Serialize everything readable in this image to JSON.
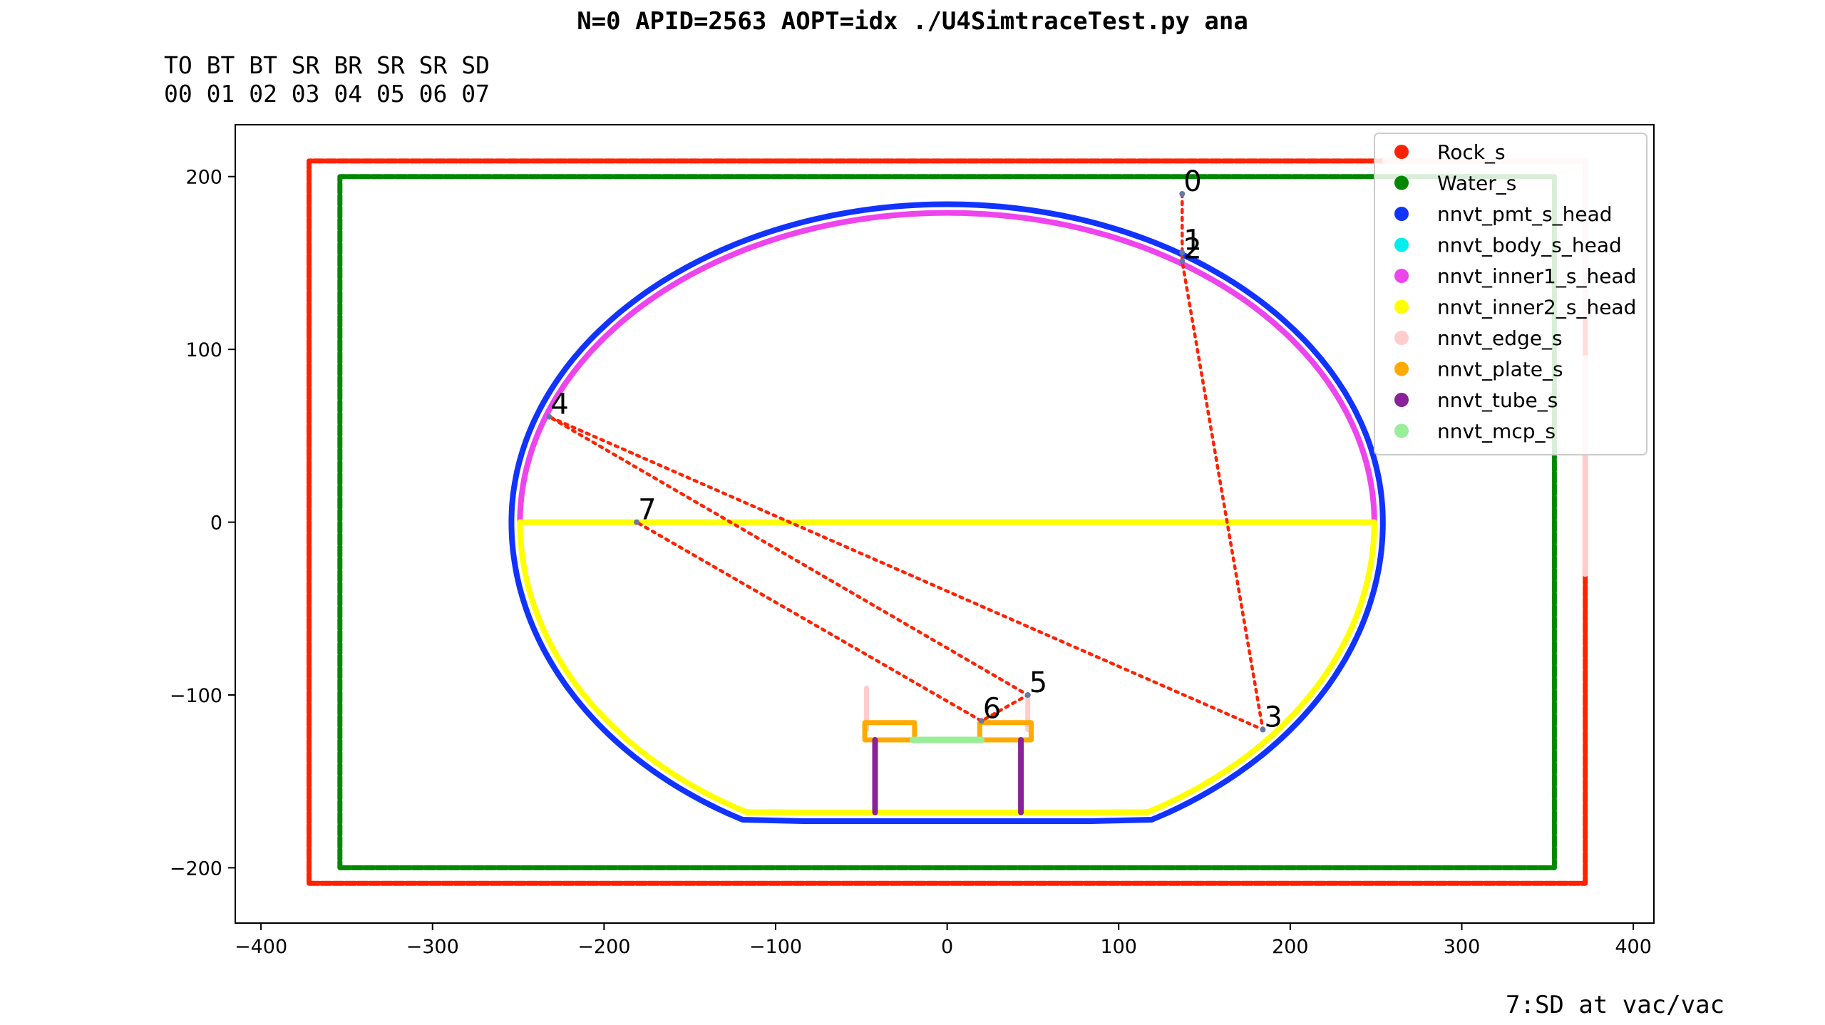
{
  "header": {
    "title": "N=0 APID=2563 AOPT=idx  ./U4SimtraceTest.py ana",
    "sequence_codes": "TO BT BT SR BR SR SR SD",
    "sequence_indices": "00 01 02 03 04 05 06 07"
  },
  "footer": {
    "text": "7:SD at vac/vac"
  },
  "chart_data": {
    "type": "scatter",
    "title": "N=0 APID=2563 AOPT=idx  ./U4SimtraceTest.py ana",
    "xlabel": "",
    "ylabel": "",
    "xlim": [
      -415,
      412
    ],
    "ylim": [
      -232,
      230
    ],
    "xticks": [
      -400,
      -300,
      -200,
      -100,
      0,
      100,
      200,
      300,
      400
    ],
    "yticks": [
      -200,
      -100,
      0,
      100,
      200
    ],
    "xtick_labels": [
      "−400",
      "−300",
      "−200",
      "−100",
      "0",
      "100",
      "200",
      "300",
      "400"
    ],
    "ytick_labels": [
      "−200",
      "−100",
      "0",
      "100",
      "200"
    ],
    "grid": false,
    "legend_position": "top-right",
    "series": [
      {
        "name": "Rock_s",
        "color": "#ff2200",
        "shape": "rect",
        "x0": -372,
        "x1": 372,
        "y0": -209,
        "y1": 209
      },
      {
        "name": "Water_s",
        "color": "#008800",
        "shape": "rect",
        "x0": -354,
        "x1": 354,
        "y0": -200,
        "y1": 200
      },
      {
        "name": "nnvt_pmt_s_head",
        "color": "#1133ff",
        "shape": "pmt",
        "a": 254,
        "b_top": 184,
        "b_bot": 195,
        "y_flat": -173,
        "flat_half": 84
      },
      {
        "name": "nnvt_body_s_head",
        "color": "#00eeee",
        "shape": "none"
      },
      {
        "name": "nnvt_inner1_s_head",
        "color": "#ee44ee",
        "shape": "upper-ellipse",
        "a": 249,
        "b": 179
      },
      {
        "name": "nnvt_inner2_s_head",
        "color": "#ffff00",
        "shape": "lower-inner",
        "a": 249,
        "b": 190,
        "y_flat": -168,
        "flat_half": 84
      },
      {
        "name": "nnvt_edge_s",
        "color": "#ffcccc",
        "shape": "edge-lines"
      },
      {
        "name": "nnvt_plate_s",
        "color": "#ffaa00",
        "shape": "plates"
      },
      {
        "name": "nnvt_tube_s",
        "color": "#882299",
        "shape": "tubes",
        "xs": [
          -42,
          43
        ],
        "y0": -168,
        "y1": -126
      },
      {
        "name": "nnvt_mcp_s",
        "color": "#99ee99",
        "shape": "segment",
        "x0": -20,
        "x1": 20,
        "y": -126
      }
    ],
    "photon_path": {
      "color": "#ff2200",
      "points": [
        {
          "label": "0",
          "x": 137,
          "y": 190
        },
        {
          "label": "1",
          "x": 137,
          "y": 156
        },
        {
          "label": "2",
          "x": 137,
          "y": 151
        },
        {
          "label": "3",
          "x": 184,
          "y": -120
        },
        {
          "label": "4",
          "x": -232,
          "y": 61
        },
        {
          "label": "5",
          "x": 47,
          "y": -100
        },
        {
          "label": "6",
          "x": 20,
          "y": -115
        },
        {
          "label": "7",
          "x": -181,
          "y": 0
        }
      ]
    }
  }
}
